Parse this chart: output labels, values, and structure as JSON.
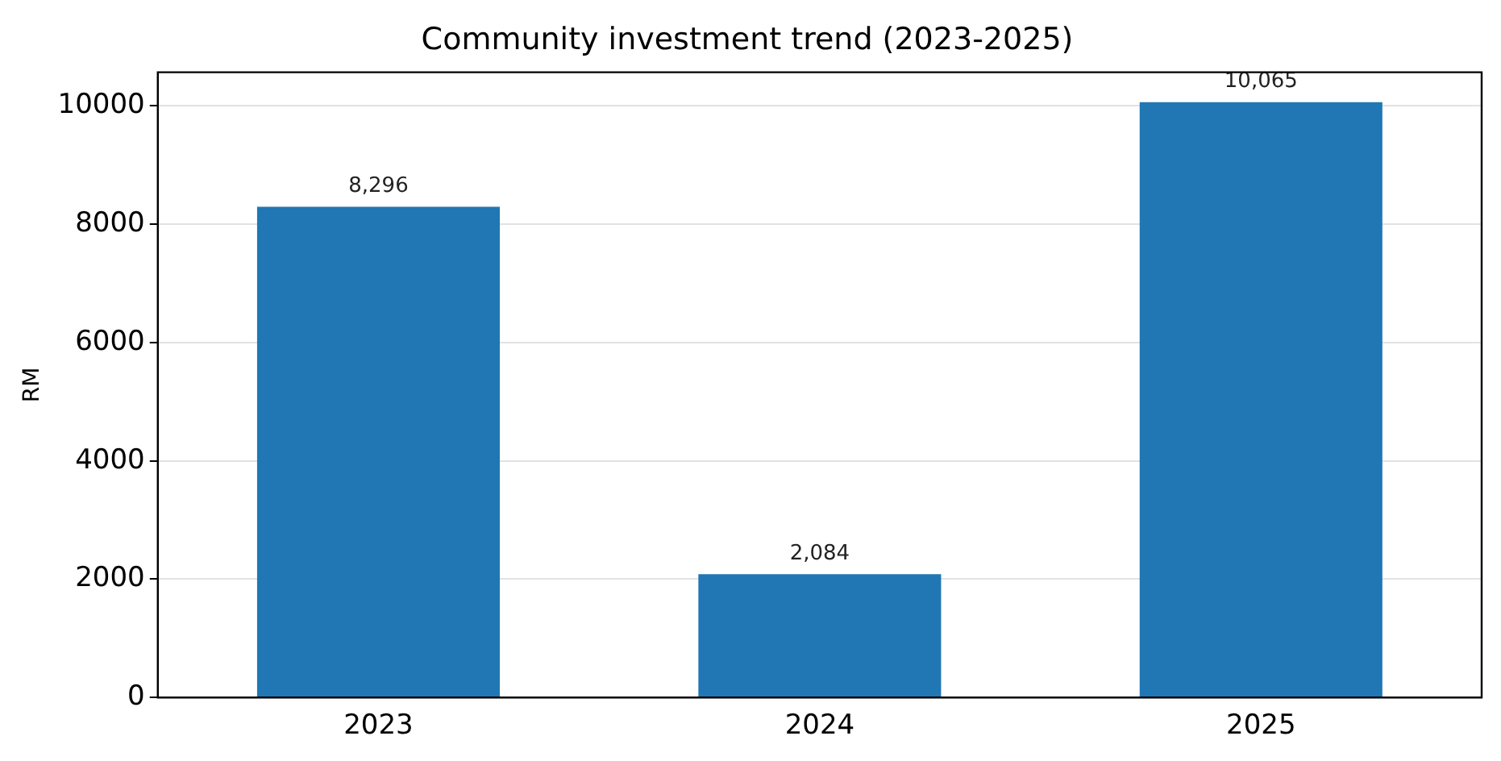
{
  "chart_data": {
    "type": "bar",
    "title": "Community investment trend (2023-2025)",
    "ylabel": "RM",
    "categories": [
      "2023",
      "2024",
      "2025"
    ],
    "values": [
      8296,
      2084,
      10065
    ],
    "value_labels": [
      "8,296",
      "2,084",
      "10,065"
    ],
    "color": "#2077b4",
    "ylim": [
      0,
      10570
    ],
    "yticks": [
      0,
      2000,
      4000,
      6000,
      8000,
      10000
    ],
    "grid": "y",
    "legend": false
  }
}
